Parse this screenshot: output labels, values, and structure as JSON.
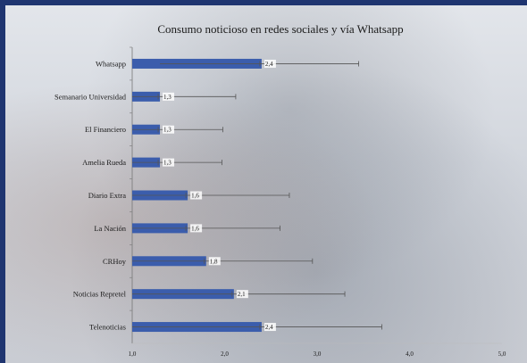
{
  "chart_data": {
    "type": "bar",
    "orientation": "horizontal",
    "title": "Consumo noticioso en redes sociales y vía Whatsapp",
    "xlabel": "",
    "ylabel": "",
    "xlim": [
      1.0,
      5.0
    ],
    "xticks": [
      "1,0",
      "2,0",
      "3,0",
      "4,0",
      "5,0"
    ],
    "xtick_values": [
      1,
      2,
      3,
      4,
      5
    ],
    "grid": false,
    "legend": "none",
    "categories": [
      "Whatsapp",
      "Semanario Universidad",
      "El Financiero",
      "Amelia Rueda",
      "Diario Extra",
      "La Nación",
      "CRHoy",
      "Noticias Repretel",
      "Telenoticias"
    ],
    "values": [
      2.4,
      1.3,
      1.3,
      1.3,
      1.6,
      1.6,
      1.8,
      2.1,
      2.4
    ],
    "value_labels": [
      "2,4",
      "1,3",
      "1,3",
      "1,3",
      "1,6",
      "1,6",
      "1,8",
      "2,1",
      "2,4"
    ],
    "error_low": [
      1.3,
      1.0,
      1.0,
      1.0,
      1.0,
      1.0,
      1.0,
      1.0,
      1.0
    ],
    "error_high": [
      3.45,
      2.12,
      1.98,
      1.97,
      2.7,
      2.6,
      2.95,
      3.3,
      3.7
    ],
    "bar_color": "#3b5dac",
    "error_bar_color": "#555555"
  }
}
